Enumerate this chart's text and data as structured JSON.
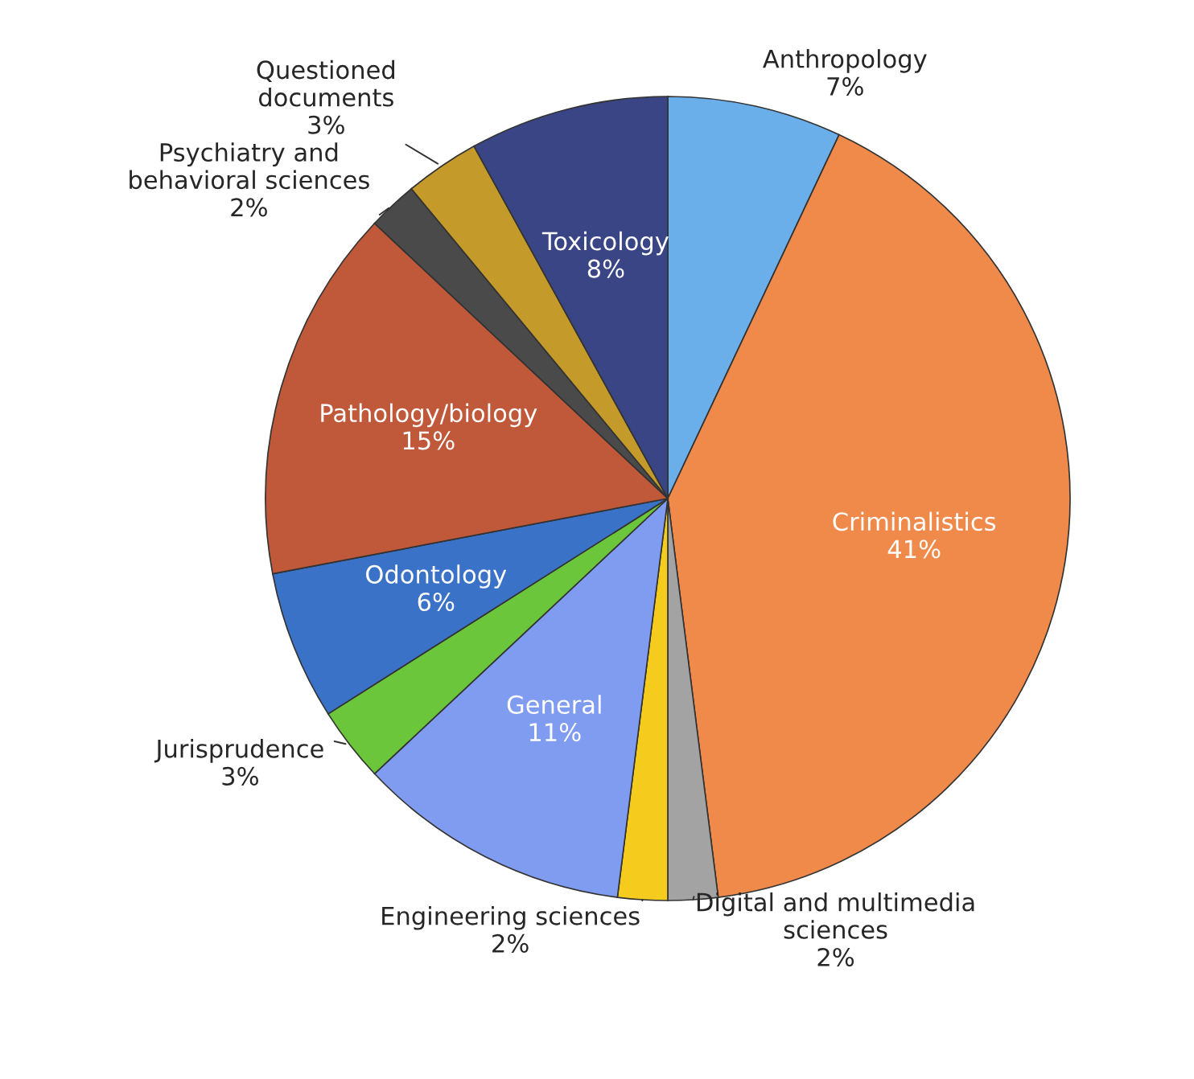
{
  "chart_data": {
    "type": "pie",
    "categories": [
      "Anthropology",
      "Criminalistics",
      "Digital and multimedia\nsciences",
      "Engineering sciences",
      "General",
      "Jurisprudence",
      "Odontology",
      "Pathology/biology",
      "Psychiatry and\nbehavioral sciences",
      "Questioned\ndocuments",
      "Toxicology"
    ],
    "values": [
      7,
      41,
      2,
      2,
      11,
      3,
      6,
      15,
      2,
      3,
      8
    ],
    "value_labels": [
      "7%",
      "41%",
      "2%",
      "2%",
      "11%",
      "3%",
      "6%",
      "15%",
      "2%",
      "3%",
      "8%"
    ],
    "colors": [
      "#6aaeea",
      "#f08a4b",
      "#a3a3a3",
      "#f5cc1e",
      "#7f9cf0",
      "#6cc63c",
      "#3a72c8",
      "#c0583a",
      "#4a4a4a",
      "#c49a2a",
      "#3a4585"
    ]
  }
}
